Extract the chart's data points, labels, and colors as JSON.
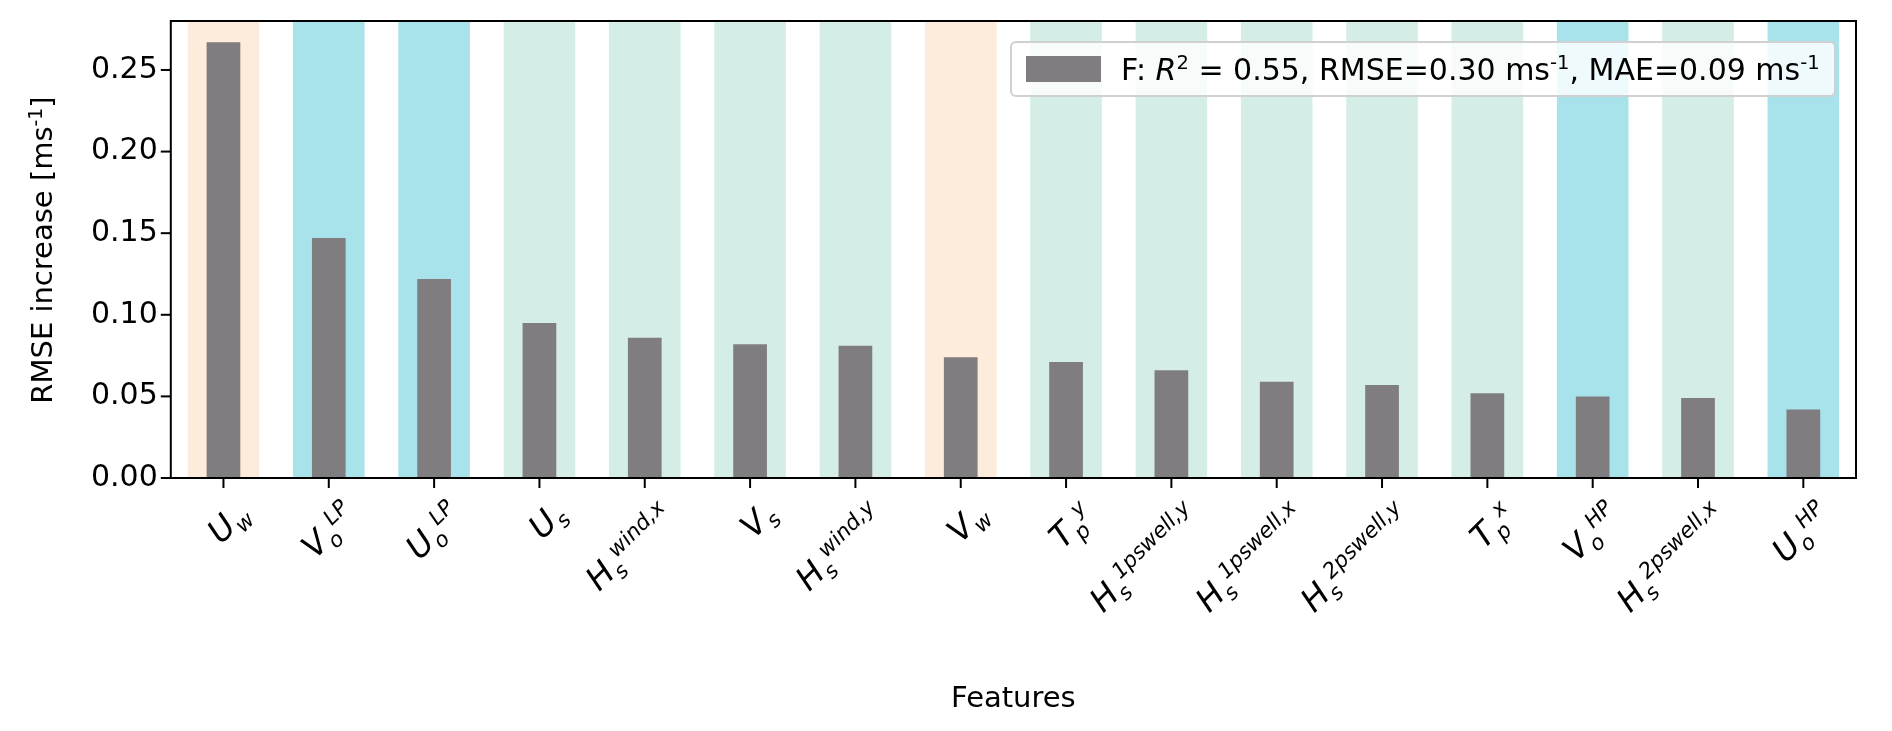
{
  "chart_data": {
    "type": "bar",
    "xlabel": "Features",
    "ylabel": "RMSE increase [ms$^{-1}$]",
    "categories": [
      "U$_{w}$",
      "V$_{o}$$^{LP}$",
      "U$_{o}$$^{LP}$",
      "U$_{s}$",
      "H$_{s}$$^{wind,x}$",
      "V$_{s}$",
      "H$_{s}$$^{wind,y}$",
      "V$_{w}$",
      "T$_{p}$$^{y}$",
      "H$_{s}$$^{1pswell,y}$",
      "H$_{s}$$^{1pswell,x}$",
      "H$_{s}$$^{2pswell,y}$",
      "T$_{p}$$^{x}$",
      "V$_{o}$$^{HP}$",
      "H$_{s}$$^{2pswell,x}$",
      "U$_{o}$$^{HP}$"
    ],
    "series": [
      {
        "name": "F: R$^{2}$ = 0.55, RMSE=0.30 ms$^{-1}$, MAE=0.09 ms$^{-1}$",
        "color": "#807d80",
        "values": [
          0.267,
          0.147,
          0.122,
          0.095,
          0.086,
          0.082,
          0.081,
          0.074,
          0.071,
          0.066,
          0.059,
          0.057,
          0.052,
          0.05,
          0.049,
          0.042
        ]
      }
    ],
    "ylim": [
      0,
      0.28
    ],
    "yticks": [
      {
        "value": 0,
        "label": "0.00"
      },
      {
        "value": 0.05,
        "label": "0.05"
      },
      {
        "value": 0.1,
        "label": "0.10"
      },
      {
        "value": 0.15,
        "label": "0.15"
      },
      {
        "value": 0.2,
        "label": "0.20"
      },
      {
        "value": 0.25,
        "label": "0.25"
      }
    ],
    "bands": [
      {
        "axis": "x",
        "from": "U$_{w}$",
        "to": "U$_{w}$",
        "color": "#fdebdb"
      },
      {
        "axis": "x",
        "from": "V$_{o}$$^{LP}$",
        "to": "V$_{o}$$^{LP}$",
        "color": "#a8e3ec"
      },
      {
        "axis": "x",
        "from": "U$_{o}$$^{LP}$",
        "to": "U$_{o}$$^{LP}$",
        "color": "#a8e3ec"
      },
      {
        "axis": "x",
        "from": "U$_{s}$",
        "to": "U$_{s}$",
        "color": "#d4ede6"
      },
      {
        "axis": "x",
        "from": "H$_{s}$$^{wind,x}$",
        "to": "H$_{s}$$^{wind,x}$",
        "color": "#d4ede6"
      },
      {
        "axis": "x",
        "from": "V$_{s}$",
        "to": "V$_{s}$",
        "color": "#d4ede6"
      },
      {
        "axis": "x",
        "from": "H$_{s}$$^{wind,y}$",
        "to": "H$_{s}$$^{wind,y}$",
        "color": "#d4ede6"
      },
      {
        "axis": "x",
        "from": "V$_{w}$",
        "to": "V$_{w}$",
        "color": "#fdebdb"
      },
      {
        "axis": "x",
        "from": "T$_{p}$$^{y}$",
        "to": "T$_{p}$$^{y}$",
        "color": "#d4ede6"
      },
      {
        "axis": "x",
        "from": "H$_{s}$$^{1pswell,y}$",
        "to": "H$_{s}$$^{1pswell,y}$",
        "color": "#d4ede6"
      },
      {
        "axis": "x",
        "from": "H$_{s}$$^{1pswell,x}$",
        "to": "H$_{s}$$^{1pswell,x}$",
        "color": "#d4ede6"
      },
      {
        "axis": "x",
        "from": "H$_{s}$$^{2pswell,y}$",
        "to": "H$_{s}$$^{2pswell,y}$",
        "color": "#d4ede6"
      },
      {
        "axis": "x",
        "from": "T$_{p}$$^{x}$",
        "to": "T$_{p}$$^{x}$",
        "color": "#d4ede6"
      },
      {
        "axis": "x",
        "from": "V$_{o}$$^{HP}$",
        "to": "V$_{o}$$^{HP}$",
        "color": "#a8e3ec"
      },
      {
        "axis": "x",
        "from": "H$_{s}$$^{2pswell,x}$",
        "to": "H$_{s}$$^{2pswell,x}$",
        "color": "#d4ede6"
      },
      {
        "axis": "x",
        "from": "U$_{o}$$^{HP}$",
        "to": "U$_{o}$$^{HP}$",
        "color": "#a8e3ec"
      }
    ],
    "grid": false,
    "legend": "top right"
  }
}
